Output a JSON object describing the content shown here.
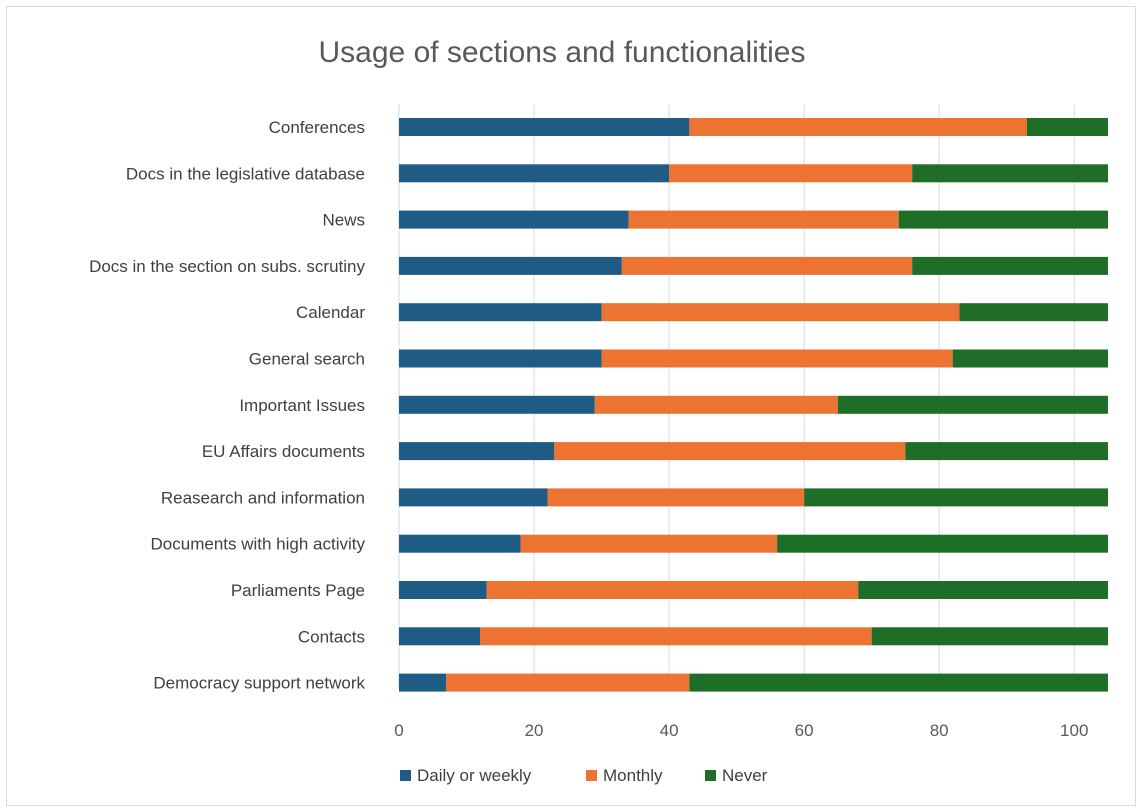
{
  "chart_data": {
    "type": "bar",
    "orientation": "horizontal",
    "stacked": true,
    "title": "Usage of sections and functionalities",
    "xlabel": "",
    "ylabel": "",
    "categories": [
      "Conferences",
      "Docs in the legislative database",
      "News",
      "Docs in the section on subs. scrutiny",
      "Calendar",
      "General search",
      "Important Issues",
      "EU Affairs documents",
      "Reasearch and information",
      "Documents with high activity",
      "Parliaments Page",
      "Contacts",
      "Democracy support network"
    ],
    "series": [
      {
        "name": "Daily or weekly",
        "color": "#1f5c85",
        "values": [
          43,
          40,
          34,
          33,
          30,
          30,
          29,
          23,
          22,
          18,
          13,
          12,
          7
        ]
      },
      {
        "name": "Monthly",
        "color": "#ed7333",
        "values": [
          50,
          36,
          40,
          43,
          53,
          52,
          36,
          52,
          38,
          38,
          55,
          58,
          36
        ]
      },
      {
        "name": "Never",
        "color": "#1e6e28",
        "values": [
          12,
          29,
          31,
          29,
          22,
          23,
          40,
          30,
          45,
          49,
          37,
          35,
          62
        ]
      }
    ],
    "xlim": [
      0,
      105
    ],
    "xticks": [
      0,
      20,
      40,
      60,
      80,
      100
    ],
    "grid": true,
    "legend_position": "bottom"
  }
}
